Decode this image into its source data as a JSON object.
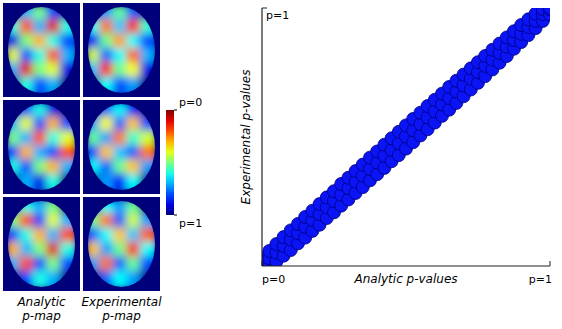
{
  "chart_data": [
    {
      "type": "heatmap",
      "panels": [
        {
          "label": "Analytic p-map",
          "maps": [
            [
              [
                1,
                0.7,
                0.5,
                0.8,
                1
              ],
              [
                0.6,
                0.2,
                0.7,
                0.1,
                0.6
              ],
              [
                0.9,
                0.5,
                0.3,
                0.6,
                0.8
              ],
              [
                0.4,
                0.8,
                0.6,
                0.2,
                0.7
              ],
              [
                0.7,
                0.1,
                0.5,
                0.4,
                0.9
              ],
              [
                1,
                0.6,
                0.8,
                0.7,
                1
              ]
            ],
            [
              [
                1,
                0.8,
                0.6,
                0.9,
                1
              ],
              [
                0.7,
                0.4,
                0.8,
                0.3,
                0.8
              ],
              [
                0.5,
                0.7,
                0.2,
                0.6,
                0.4
              ],
              [
                0.8,
                0.3,
                0.7,
                0.8,
                0.2
              ],
              [
                0.6,
                0.8,
                0.5,
                0.3,
                0.7
              ],
              [
                1,
                0.7,
                0.9,
                0.6,
                1
              ]
            ],
            [
              [
                1,
                0.6,
                0.7,
                0.5,
                1
              ],
              [
                0.5,
                0.2,
                0.8,
                0.4,
                0.7
              ],
              [
                0.8,
                0.6,
                0.3,
                0.7,
                0.2
              ],
              [
                0.3,
                0.7,
                0.5,
                0.1,
                0.6
              ],
              [
                0.7,
                0.2,
                0.8,
                0.5,
                0.8
              ],
              [
                1,
                0.8,
                0.6,
                0.7,
                1
              ]
            ]
          ]
        },
        {
          "label": "Experimental p-map",
          "maps": [
            [
              [
                1,
                0.72,
                0.52,
                0.78,
                1
              ],
              [
                0.62,
                0.24,
                0.68,
                0.14,
                0.58
              ],
              [
                0.88,
                0.52,
                0.28,
                0.62,
                0.8
              ],
              [
                0.42,
                0.78,
                0.62,
                0.22,
                0.7
              ],
              [
                0.68,
                0.14,
                0.52,
                0.38,
                0.9
              ],
              [
                1,
                0.62,
                0.8,
                0.72,
                1
              ]
            ],
            [
              [
                1,
                0.78,
                0.62,
                0.88,
                1
              ],
              [
                0.72,
                0.38,
                0.78,
                0.32,
                0.8
              ],
              [
                0.52,
                0.72,
                0.24,
                0.58,
                0.42
              ],
              [
                0.8,
                0.32,
                0.68,
                0.78,
                0.24
              ],
              [
                0.62,
                0.78,
                0.52,
                0.32,
                0.72
              ],
              [
                1,
                0.72,
                0.88,
                0.62,
                1
              ]
            ],
            [
              [
                1,
                0.62,
                0.72,
                0.52,
                1
              ],
              [
                0.52,
                0.24,
                0.78,
                0.42,
                0.72
              ],
              [
                0.78,
                0.62,
                0.32,
                0.68,
                0.22
              ],
              [
                0.32,
                0.72,
                0.52,
                0.14,
                0.62
              ],
              [
                0.72,
                0.24,
                0.78,
                0.52,
                0.8
              ],
              [
                1,
                0.78,
                0.62,
                0.72,
                1
              ]
            ]
          ]
        }
      ],
      "colorbar": {
        "range": [
          0,
          1
        ],
        "ticks": [
          {
            "value": 0,
            "label": "p=0"
          },
          {
            "value": 1,
            "label": "p=1"
          }
        ]
      }
    },
    {
      "type": "scatter",
      "x_label": "Analytic p-values",
      "y_label": "Experimental p-values",
      "xlim": [
        0,
        1
      ],
      "ylim": [
        0,
        1
      ],
      "xticks": [
        {
          "value": 0,
          "label": "p=0"
        },
        {
          "value": 1,
          "label": "p=1"
        }
      ],
      "yticks": [
        {
          "value": 1,
          "label": "p=1"
        }
      ],
      "color": "#0a14f5",
      "marker": "circle",
      "x": [
        0,
        0,
        0,
        0.025,
        0.025,
        0.025,
        0.05,
        0.05,
        0.05,
        0.075,
        0.075,
        0.075,
        0.1,
        0.1,
        0.1,
        0.125,
        0.125,
        0.125,
        0.15,
        0.15,
        0.15,
        0.175,
        0.175,
        0.175,
        0.2,
        0.2,
        0.2,
        0.225,
        0.225,
        0.225,
        0.25,
        0.25,
        0.25,
        0.275,
        0.275,
        0.275,
        0.3,
        0.3,
        0.3,
        0.325,
        0.325,
        0.325,
        0.35,
        0.35,
        0.35,
        0.375,
        0.375,
        0.375,
        0.4,
        0.4,
        0.4,
        0.425,
        0.425,
        0.425,
        0.45,
        0.45,
        0.45,
        0.475,
        0.475,
        0.475,
        0.5,
        0.5,
        0.5,
        0.525,
        0.525,
        0.525,
        0.55,
        0.55,
        0.55,
        0.575,
        0.575,
        0.575,
        0.6,
        0.6,
        0.6,
        0.625,
        0.625,
        0.625,
        0.65,
        0.65,
        0.65,
        0.675,
        0.675,
        0.675,
        0.7,
        0.7,
        0.7,
        0.725,
        0.725,
        0.725,
        0.75,
        0.75,
        0.75,
        0.775,
        0.775,
        0.775,
        0.8,
        0.8,
        0.8,
        0.825,
        0.825,
        0.825,
        0.85,
        0.85,
        0.85,
        0.875,
        0.875,
        0.875,
        0.9,
        0.9,
        0.9,
        0.925,
        0.925,
        0.925,
        0.95,
        0.95,
        0.95,
        0.975,
        0.975,
        0.975,
        1,
        1,
        1
      ],
      "values": [
        0,
        0.01,
        0.03,
        0,
        0.03,
        0.058,
        0.018,
        0.052,
        0.085,
        0.04,
        0.078,
        0.112,
        0.062,
        0.103,
        0.138,
        0.088,
        0.127,
        0.163,
        0.11,
        0.152,
        0.19,
        0.136,
        0.178,
        0.214,
        0.16,
        0.201,
        0.24,
        0.186,
        0.228,
        0.266,
        0.208,
        0.252,
        0.29,
        0.234,
        0.276,
        0.318,
        0.258,
        0.302,
        0.342,
        0.283,
        0.327,
        0.368,
        0.306,
        0.35,
        0.393,
        0.332,
        0.376,
        0.42,
        0.356,
        0.401,
        0.444,
        0.38,
        0.427,
        0.47,
        0.406,
        0.45,
        0.495,
        0.43,
        0.476,
        0.52,
        0.455,
        0.502,
        0.545,
        0.48,
        0.526,
        0.57,
        0.506,
        0.55,
        0.594,
        0.53,
        0.576,
        0.62,
        0.556,
        0.6,
        0.644,
        0.582,
        0.626,
        0.668,
        0.606,
        0.651,
        0.694,
        0.632,
        0.676,
        0.718,
        0.658,
        0.7,
        0.742,
        0.684,
        0.726,
        0.766,
        0.71,
        0.751,
        0.79,
        0.736,
        0.776,
        0.814,
        0.762,
        0.8,
        0.838,
        0.788,
        0.826,
        0.862,
        0.814,
        0.85,
        0.886,
        0.842,
        0.876,
        0.91,
        0.868,
        0.9,
        0.934,
        0.895,
        0.926,
        0.956,
        0.922,
        0.95,
        0.978,
        0.95,
        0.976,
        0.996,
        0.975,
        0.995,
        1
      ]
    }
  ]
}
